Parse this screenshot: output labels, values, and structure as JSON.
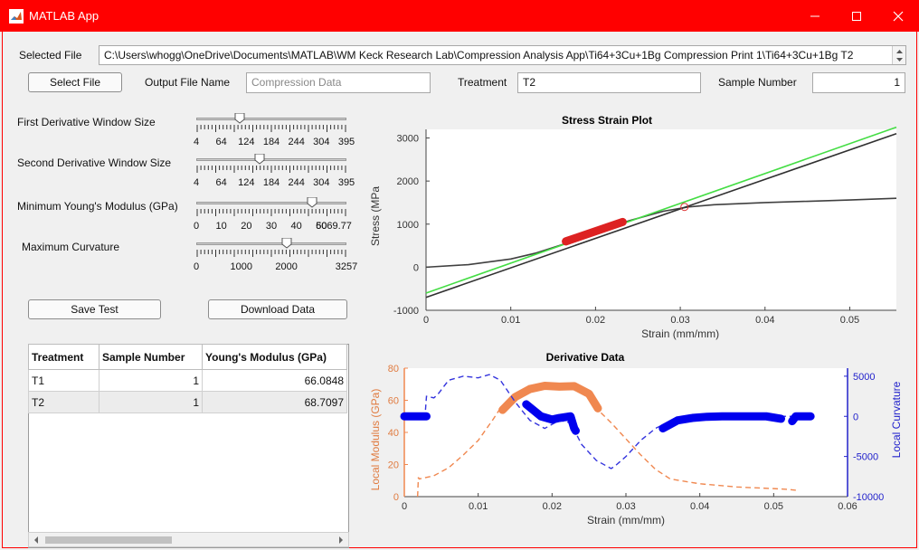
{
  "window": {
    "title": "MATLAB App"
  },
  "selected_file": {
    "label": "Selected File",
    "value": "C:\\Users\\whogg\\OneDrive\\Documents\\MATLAB\\WM Keck Research Lab\\Compression Analysis App\\Ti64+3Cu+1Bg Compression Print 1\\Ti64+3Cu+1Bg T2"
  },
  "toolbar": {
    "select_file_label": "Select File",
    "output_file_label": "Output File Name",
    "output_file_placeholder": "Compression Data",
    "treatment_label": "Treatment",
    "treatment_value": "T2",
    "sample_number_label": "Sample Number",
    "sample_number_value": "1"
  },
  "sliders": [
    {
      "label": "First Derivative Window Size",
      "ticks": [
        "4",
        "64",
        "124",
        "184",
        "244",
        "304",
        "395"
      ],
      "value_fraction": 0.29
    },
    {
      "label": "Second Derivative Window Size",
      "ticks": [
        "4",
        "64",
        "124",
        "184",
        "244",
        "304",
        "395"
      ],
      "value_fraction": 0.42
    },
    {
      "label": "Minimum Young's Modulus (GPa)",
      "ticks": [
        "0",
        "10",
        "20",
        "30",
        "40",
        "50",
        "6069.77"
      ],
      "value_fraction": 0.77
    },
    {
      "label": "Maximum Curvature",
      "ticks": [
        "0",
        "1000",
        "2000",
        "3257"
      ],
      "value_fraction": 0.6
    }
  ],
  "actions": {
    "save_test_label": "Save Test",
    "download_data_label": "Download Data"
  },
  "results_table": {
    "headers": [
      "Treatment",
      "Sample Number",
      "Young's Modulus (GPa)"
    ],
    "rows": [
      [
        "T1",
        "1",
        "66.0848"
      ],
      [
        "T2",
        "1",
        "68.7097"
      ]
    ]
  },
  "chart_data": [
    {
      "type": "line",
      "title": "Stress Strain Plot",
      "xlabel": "Strain (mm/mm)",
      "ylabel": "Stress (MPa",
      "xlim": [
        0,
        0.0555
      ],
      "ylim": [
        -1000,
        3200
      ],
      "xticks": [
        "0",
        "0.01",
        "0.02",
        "0.03",
        "0.04",
        "0.05"
      ],
      "yticks": [
        "-1000",
        "0",
        "1000",
        "2000",
        "3000"
      ],
      "series": [
        {
          "role": "stress-strain curve",
          "color": "#404040",
          "x": [
            0,
            0.005,
            0.01,
            0.013,
            0.016,
            0.02,
            0.024,
            0.028,
            0.031,
            0.034,
            0.04,
            0.045,
            0.05,
            0.0555
          ],
          "y": [
            0,
            60,
            190,
            330,
            520,
            820,
            1080,
            1300,
            1400,
            1450,
            1500,
            1530,
            1560,
            1600
          ]
        },
        {
          "role": "modulus fit line",
          "color": "#44dd44",
          "x": [
            0,
            0.0555
          ],
          "y": [
            -600,
            3250
          ]
        },
        {
          "role": "offset line",
          "color": "#303030",
          "x": [
            0,
            0.0555
          ],
          "y": [
            -700,
            3100
          ]
        },
        {
          "role": "linear region",
          "color": "#dd2222",
          "x": [
            0.0165,
            0.0232
          ],
          "y": [
            600,
            1050
          ]
        },
        {
          "role": "yield point",
          "color": "#dd3333",
          "x": [
            0.0305
          ],
          "y": [
            1400
          ]
        }
      ]
    },
    {
      "type": "line",
      "title": "Derivative Data",
      "xlabel": "Strain (mm/mm)",
      "ylabel": "Local Modulus (GPa)",
      "ylabel_right": "Local Curvature",
      "xlim": [
        0,
        0.06
      ],
      "ylim": [
        0,
        80
      ],
      "ylim_right": [
        -10000,
        6000
      ],
      "xticks": [
        "0",
        "0.01",
        "0.02",
        "0.03",
        "0.04",
        "0.05",
        "0.06"
      ],
      "yticks": [
        "0",
        "20",
        "40",
        "60",
        "80"
      ],
      "yticks_right": [
        "-10000",
        "-5000",
        "0",
        "5000"
      ],
      "series": [
        {
          "role": "local modulus",
          "axis": "left",
          "color": "#f08850",
          "x": [
            0.0018,
            0.0019,
            0.002,
            0.004,
            0.006,
            0.008,
            0.01,
            0.012,
            0.013,
            0.015,
            0.017,
            0.019,
            0.021,
            0.023,
            0.025,
            0.026,
            0.028,
            0.03,
            0.032,
            0.034,
            0.036,
            0.04,
            0.045,
            0.05,
            0.052,
            0.053
          ],
          "y": [
            0,
            12,
            11,
            13,
            18,
            26,
            35,
            48,
            55,
            63,
            68,
            69,
            68.7,
            69,
            65,
            55,
            46,
            36,
            26,
            17,
            11,
            8,
            6,
            5,
            4.5,
            4
          ]
        },
        {
          "role": "local modulus fit region",
          "axis": "left",
          "color": "#f08850",
          "x": [
            0.0133,
            0.015,
            0.017,
            0.019,
            0.021,
            0.023,
            0.025,
            0.0262
          ],
          "y": [
            54,
            62,
            67,
            69,
            68.5,
            68.8,
            64,
            55
          ]
        },
        {
          "role": "local curvature",
          "axis": "right",
          "color": "#3333dd",
          "x": [
            0,
            0.0028,
            0.003,
            0.004,
            0.0045,
            0.006,
            0.008,
            0.01,
            0.0115,
            0.013,
            0.015,
            0.017,
            0.019,
            0.021,
            0.0225,
            0.024,
            0.026,
            0.028,
            0.0285,
            0.03,
            0.032,
            0.034,
            0.036,
            0.04,
            0.045,
            0.05,
            0.053,
            0.054,
            0.055
          ],
          "y": [
            0,
            0,
            2500,
            2300,
            2700,
            4500,
            5000,
            4800,
            5200,
            4500,
            1800,
            -500,
            -1500,
            -500,
            -800,
            -3500,
            -5500,
            -6500,
            -6200,
            -5000,
            -3000,
            -1500,
            -600,
            -100,
            0,
            0,
            0,
            0,
            0
          ]
        },
        {
          "role": "local curvature markers",
          "axis": "right",
          "color": "#0000ee",
          "x": [
            0,
            0.001,
            0.002,
            0.003,
            0.0165,
            0.0185,
            0.02,
            0.021,
            0.0225,
            0.023,
            0.0232,
            0.035,
            0.037,
            0.039,
            0.041,
            0.043,
            0.046,
            0.049,
            0.051,
            0.0525,
            0.053,
            0.0537,
            0.055
          ],
          "y": [
            0,
            0,
            0,
            0,
            1500,
            0,
            -400,
            -200,
            0,
            -1500,
            -1800,
            -1500,
            -500,
            -200,
            -50,
            0,
            0,
            0,
            -300,
            -600,
            0,
            0,
            0
          ]
        }
      ]
    }
  ]
}
